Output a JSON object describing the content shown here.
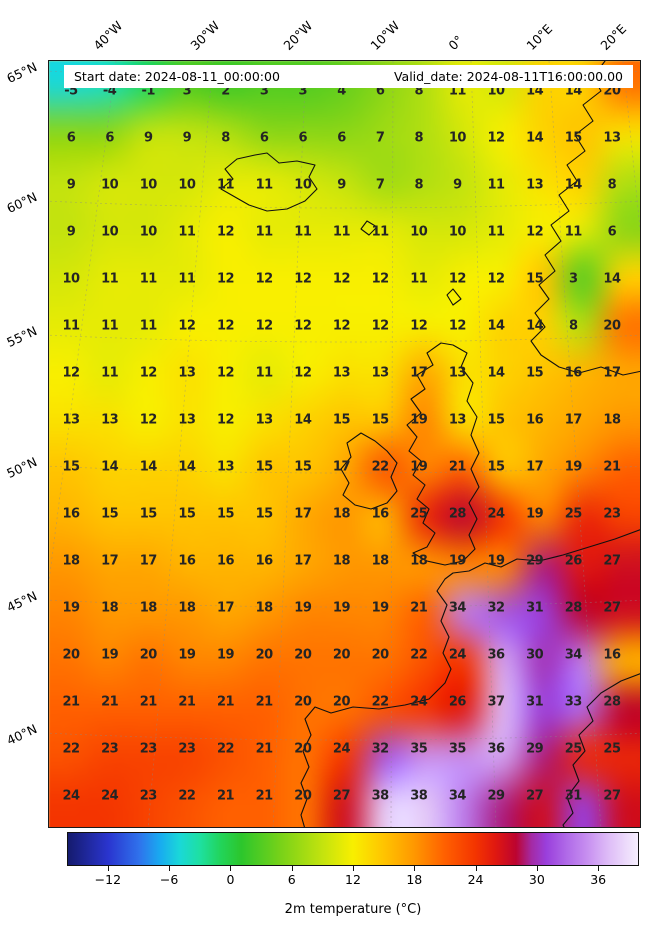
{
  "chart_data": {
    "type": "heatmap",
    "title": "",
    "colorbar_label": "2m temperature (°C)",
    "annotations": {
      "start": "Start date: 2024-08-11_00:00:00",
      "valid": "Valid_date: 2024-08-11T16:00:00.00"
    },
    "x_tick_labels": [
      "40°W",
      "30°W",
      "20°W",
      "10°W",
      "0°",
      "10°E",
      "20°E"
    ],
    "y_tick_labels": [
      "65°N",
      "60°N",
      "55°N",
      "50°N",
      "45°N",
      "40°N"
    ],
    "colorbar_ticks": [
      -12,
      -6,
      0,
      6,
      12,
      18,
      24,
      30,
      36
    ],
    "value_range": [
      -16,
      40
    ],
    "grid_values": [
      [
        -5,
        -4,
        -1,
        3,
        2,
        3,
        3,
        4,
        6,
        8,
        11,
        10,
        14,
        14,
        20
      ],
      [
        6,
        6,
        9,
        9,
        8,
        6,
        6,
        6,
        7,
        8,
        10,
        12,
        14,
        15,
        13
      ],
      [
        9,
        10,
        10,
        10,
        11,
        11,
        10,
        9,
        7,
        8,
        9,
        11,
        13,
        14,
        8
      ],
      [
        9,
        10,
        10,
        11,
        12,
        11,
        11,
        11,
        11,
        10,
        10,
        11,
        12,
        11,
        6
      ],
      [
        10,
        11,
        11,
        11,
        12,
        12,
        12,
        12,
        12,
        11,
        12,
        12,
        15,
        3,
        14
      ],
      [
        11,
        11,
        11,
        12,
        12,
        12,
        12,
        12,
        12,
        12,
        12,
        14,
        14,
        8,
        20
      ],
      [
        12,
        11,
        12,
        13,
        12,
        11,
        12,
        13,
        13,
        17,
        13,
        14,
        15,
        16,
        17
      ],
      [
        13,
        13,
        12,
        13,
        12,
        13,
        14,
        15,
        15,
        19,
        13,
        15,
        16,
        17,
        18
      ],
      [
        15,
        14,
        14,
        14,
        13,
        15,
        15,
        17,
        22,
        19,
        21,
        15,
        17,
        19,
        21
      ],
      [
        16,
        15,
        15,
        15,
        15,
        15,
        17,
        18,
        16,
        25,
        28,
        24,
        19,
        25,
        23
      ],
      [
        18,
        17,
        17,
        16,
        16,
        16,
        17,
        18,
        18,
        18,
        19,
        19,
        29,
        26,
        27
      ],
      [
        19,
        18,
        18,
        18,
        17,
        18,
        19,
        19,
        19,
        21,
        34,
        32,
        31,
        28,
        27
      ],
      [
        20,
        19,
        20,
        19,
        19,
        20,
        20,
        20,
        20,
        22,
        24,
        36,
        30,
        34,
        16
      ],
      [
        21,
        21,
        21,
        21,
        21,
        21,
        20,
        20,
        22,
        24,
        26,
        37,
        31,
        33,
        28
      ],
      [
        22,
        23,
        23,
        23,
        22,
        21,
        20,
        24,
        32,
        35,
        35,
        36,
        29,
        25,
        25
      ],
      [
        24,
        24,
        23,
        22,
        21,
        21,
        20,
        27,
        38,
        38,
        34,
        29,
        27,
        31,
        27
      ]
    ],
    "colormap_stops": [
      [
        -16,
        "#151b6e"
      ],
      [
        -12,
        "#2a35cf"
      ],
      [
        -9,
        "#2f72ec"
      ],
      [
        -7,
        "#19aaf0"
      ],
      [
        -5,
        "#1ad8d8"
      ],
      [
        -3,
        "#1ee0a0"
      ],
      [
        -1,
        "#22d45a"
      ],
      [
        1,
        "#2cc62c"
      ],
      [
        5,
        "#7ad218"
      ],
      [
        9,
        "#c3e30e"
      ],
      [
        12,
        "#f8ef00"
      ],
      [
        15,
        "#ffc400"
      ],
      [
        18,
        "#ff9800"
      ],
      [
        21,
        "#ff6000"
      ],
      [
        24,
        "#f43500"
      ],
      [
        26,
        "#e01810"
      ],
      [
        28,
        "#bc0430"
      ],
      [
        29.5,
        "#a42aa4"
      ],
      [
        31,
        "#9a3fdc"
      ],
      [
        33,
        "#b06ae8"
      ],
      [
        35,
        "#c78ff0"
      ],
      [
        37,
        "#ddbaf7"
      ],
      [
        40,
        "#f6effe"
      ]
    ]
  }
}
